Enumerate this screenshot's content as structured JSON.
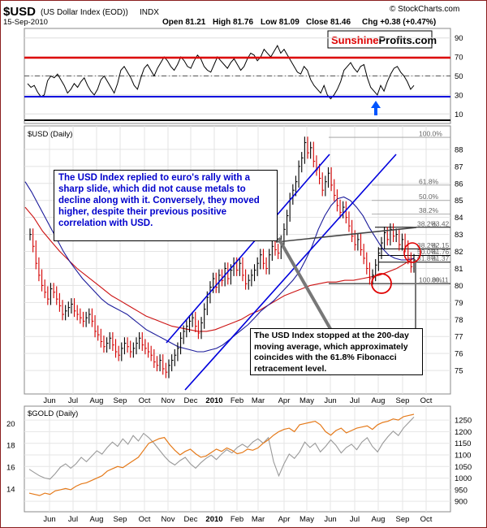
{
  "header": {
    "symbol": "$USD",
    "name": "(US Dollar Index (EOD))",
    "exchange": "INDX",
    "date": "15-Sep-2010",
    "open": "Open 81.21",
    "high": "High 81.76",
    "low": "Low 81.09",
    "close": "Close 81.46",
    "chg": "Chg +0.38 (+0.47%)",
    "source": "© StockCharts.com",
    "brand_a": "Sunshine",
    "brand_b": "Profits.com"
  },
  "labels": {
    "main_panel": "$USD (Daily)",
    "gold_panel": "$GOLD (Daily)"
  },
  "annotations": {
    "note_top": "The USD Index replied to euro's rally with a sharp slide, which did not cause metals to decline along with it. Conversely, they moved higher, despite their previous positive correlation with USD.",
    "note_bottom": "The USD Index stopped at the 200-day moving average, which approximately coincides with the 61.8% Fibonacci retracement level."
  },
  "colors": {
    "price_up": "#000000",
    "price_down": "#d40000",
    "ma_short": "#1a1a9a",
    "ma_long": "#cc1111",
    "channel": "#0000dd",
    "usd_in_gold_panel": "#999999",
    "gold": "#e57a1a",
    "note_text": "#0000cc",
    "rsi_high_line": "#dd0000",
    "rsi_low_line": "#0000dd"
  },
  "chart_data": [
    {
      "type": "line",
      "panel": "RSI",
      "ylim": [
        0,
        100
      ],
      "y_ticks": [
        "90",
        "70",
        "50",
        "30",
        "10"
      ],
      "series": [
        {
          "values": [
            42,
            38,
            40,
            33,
            28,
            30,
            45,
            50,
            48,
            52,
            46,
            40,
            32,
            36,
            42,
            38,
            44,
            48,
            40,
            34,
            30,
            36,
            46,
            50,
            44,
            38,
            32,
            42,
            56,
            60,
            54,
            48,
            40,
            36,
            48,
            58,
            62,
            56,
            50,
            58,
            64,
            70,
            66,
            60,
            56,
            62,
            70,
            66,
            60,
            58,
            66,
            72,
            68,
            60,
            56,
            54,
            62,
            70,
            66,
            62,
            58,
            64,
            68,
            62,
            56,
            60,
            68,
            74,
            72,
            66,
            70,
            78,
            74,
            70,
            76,
            82,
            74,
            78,
            72,
            66,
            60,
            54,
            52,
            60,
            56,
            46,
            40,
            36,
            32,
            40,
            30,
            26,
            30,
            36,
            44,
            56,
            60,
            64,
            58,
            54,
            60,
            62,
            48,
            38,
            34,
            30,
            40,
            34,
            44,
            52,
            58,
            60,
            54,
            50,
            44,
            36,
            40
          ]
        }
      ]
    },
    {
      "type": "line",
      "panel": "USD",
      "title": "$USD (Daily)",
      "ylim": [
        74,
        89
      ],
      "y_ticks": [
        "88",
        "87",
        "86",
        "85",
        "84",
        "83",
        "82",
        "81",
        "80",
        "79",
        "78",
        "77",
        "76",
        "75"
      ],
      "x_ticks": [
        "Jun",
        "Jul",
        "Aug",
        "Sep",
        "Oct",
        "Nov",
        "Dec",
        "2010",
        "Feb",
        "Mar",
        "Apr",
        "May",
        "Jun",
        "Jul",
        "Aug",
        "Sep",
        "Oct"
      ],
      "series": [
        {
          "values": [
            83.0,
            82.3,
            81.3,
            80.6,
            80.0,
            79.6,
            79.2,
            79.8,
            79.6,
            79.2,
            78.8,
            78.3,
            78.5,
            78.7,
            78.9,
            78.5,
            78.3,
            78.1,
            77.9,
            78.1,
            78.3,
            77.9,
            77.3,
            77.1,
            76.7,
            76.4,
            76.6,
            76.9,
            76.5,
            76.1,
            75.9,
            76.3,
            76.6,
            76.4,
            76.1,
            76.3,
            76.6,
            76.9,
            76.5,
            76.3,
            76.1,
            75.9,
            75.5,
            75.3,
            75.6,
            75.1,
            74.9,
            75.3,
            75.6,
            75.9,
            76.3,
            76.9,
            77.3,
            77.6,
            77.9,
            78.1,
            77.6,
            77.2,
            77.8,
            78.6,
            79.3,
            79.9,
            80.4,
            79.9,
            80.6,
            80.3,
            81.0,
            80.4,
            80.9,
            81.3,
            80.9,
            81.3,
            80.6,
            80.1,
            80.3,
            80.6,
            80.9,
            81.3,
            81.8,
            81.3,
            81.0,
            81.8,
            82.3,
            82.1,
            81.9,
            82.6,
            83.3,
            84.1,
            85.1,
            85.6,
            86.1,
            87.0,
            87.5,
            88.4,
            87.8,
            88.1,
            87.3,
            86.8,
            86.3,
            85.6,
            86.1,
            86.6,
            85.9,
            85.3,
            84.7,
            84.3,
            84.6,
            84.0,
            83.5,
            82.9,
            82.4,
            82.7,
            82.1,
            81.6,
            81.0,
            80.4,
            80.6,
            81.2,
            81.9,
            82.5,
            83.1,
            82.7,
            83.3,
            82.9,
            83.0,
            82.4,
            82.7,
            82.3,
            81.6,
            81.1,
            81.5
          ]
        },
        {
          "name": "MA short (blue)",
          "values": [
            86.1,
            85.5,
            84.8,
            84.1,
            83.4,
            82.7,
            82.0,
            81.4,
            80.9,
            80.4,
            80.0,
            79.6,
            79.2,
            78.9,
            78.7,
            78.5,
            78.3,
            78.0,
            77.7,
            77.4,
            77.2,
            77.0,
            76.8,
            76.6,
            76.4,
            76.3,
            76.2,
            76.1,
            76.1,
            76.2,
            76.3,
            76.5,
            76.8,
            77.1,
            77.4,
            77.7,
            78.1,
            78.5,
            78.8,
            79.1,
            79.5,
            79.9,
            80.3,
            80.8,
            81.5,
            82.3,
            83.3,
            84.1,
            84.7,
            85.1,
            85.2,
            85.0,
            84.6,
            84.1,
            83.4,
            82.8,
            82.2,
            81.8,
            81.6,
            81.5,
            81.5,
            81.6
          ]
        },
        {
          "name": "MA long (red)",
          "values": [
            84.6,
            84.0,
            83.2,
            82.6,
            82.0,
            81.5,
            81.0,
            80.6,
            80.2,
            79.8,
            79.4,
            79.1,
            78.8,
            78.5,
            78.2,
            78.0,
            77.8,
            77.6,
            77.5,
            77.4,
            77.3,
            77.3,
            77.4,
            77.6,
            77.8,
            78.0,
            78.3,
            78.5,
            78.8,
            79.1,
            79.4,
            79.6,
            79.8,
            80.0,
            80.1,
            80.2,
            80.2,
            80.3,
            80.3,
            80.4,
            80.5,
            80.6,
            80.8,
            81.0,
            81.3,
            81.6
          ]
        }
      ],
      "fibonacci": [
        {
          "label": "100.0%",
          "value": 88.71
        },
        {
          "label": "61.8%",
          "value": 85.9
        },
        {
          "label": "50.0%",
          "value": 85.0
        },
        {
          "label": "38.2%",
          "value": 84.2
        },
        {
          "label": "38.2%",
          "value": 83.42
        },
        {
          "label": "38.2%",
          "value": 82.15
        },
        {
          "label": "50.0%",
          "value": 81.76
        },
        {
          "label": "61.8%",
          "value": 81.37
        },
        {
          "label": "100.0%",
          "value": 80.11
        }
      ],
      "fib_value_labels": [
        "83.42",
        "82.15",
        "81.76",
        "81.37",
        "80.11"
      ]
    },
    {
      "type": "line",
      "panel": "GOLD",
      "title": "$GOLD (Daily)",
      "left_y_ticks": [
        "20",
        "18",
        "16",
        "14"
      ],
      "right_y_ticks": [
        "1250",
        "1200",
        "1150",
        "1100",
        "1050",
        "1000",
        "950",
        "900"
      ],
      "x_ticks": [
        "Jun",
        "Jul",
        "Aug",
        "Sep",
        "Oct",
        "Nov",
        "Dec",
        "2010",
        "Feb",
        "Mar",
        "Apr",
        "May",
        "Jun",
        "Jul",
        "Aug",
        "Sep",
        "Oct"
      ],
      "series": [
        {
          "name": "$USD",
          "values": [
            15.8,
            15.5,
            15.2,
            15.0,
            14.9,
            15.4,
            16.0,
            16.3,
            15.9,
            16.3,
            16.9,
            16.5,
            17.0,
            17.5,
            17.2,
            17.8,
            18.3,
            17.9,
            18.6,
            18.1,
            18.9,
            18.4,
            19.1,
            18.7,
            18.2,
            17.6,
            17.0,
            16.5,
            16.2,
            16.6,
            16.9,
            16.3,
            15.9,
            16.4,
            16.8,
            17.1,
            16.7,
            17.2,
            17.6,
            17.3,
            17.8,
            18.1,
            17.8,
            18.3,
            18.6,
            18.2,
            18.7,
            16.5,
            15.2,
            16.3,
            17.2,
            16.8,
            17.4,
            18.3,
            17.8,
            18.2,
            17.4,
            17.9,
            18.5,
            18.0,
            17.3,
            17.8,
            18.1,
            17.6,
            18.3,
            18.7,
            17.9,
            17.4,
            18.2,
            18.8,
            19.3,
            18.9,
            19.6,
            20.1,
            20.6
          ]
        },
        {
          "name": "$GOLD",
          "values": [
            935,
            930,
            925,
            935,
            930,
            945,
            950,
            955,
            950,
            965,
            975,
            980,
            990,
            1000,
            1010,
            1030,
            1040,
            1050,
            1045,
            1060,
            1075,
            1090,
            1120,
            1150,
            1160,
            1170,
            1175,
            1145,
            1120,
            1100,
            1115,
            1125,
            1105,
            1090,
            1095,
            1110,
            1125,
            1115,
            1130,
            1120,
            1105,
            1110,
            1125,
            1120,
            1130,
            1150,
            1165,
            1185,
            1200,
            1210,
            1215,
            1200,
            1230,
            1235,
            1240,
            1245,
            1230,
            1200,
            1185,
            1205,
            1215,
            1195,
            1205,
            1215,
            1220,
            1225,
            1210,
            1230,
            1240,
            1245,
            1255,
            1250,
            1265,
            1270,
            1275
          ]
        }
      ]
    }
  ]
}
